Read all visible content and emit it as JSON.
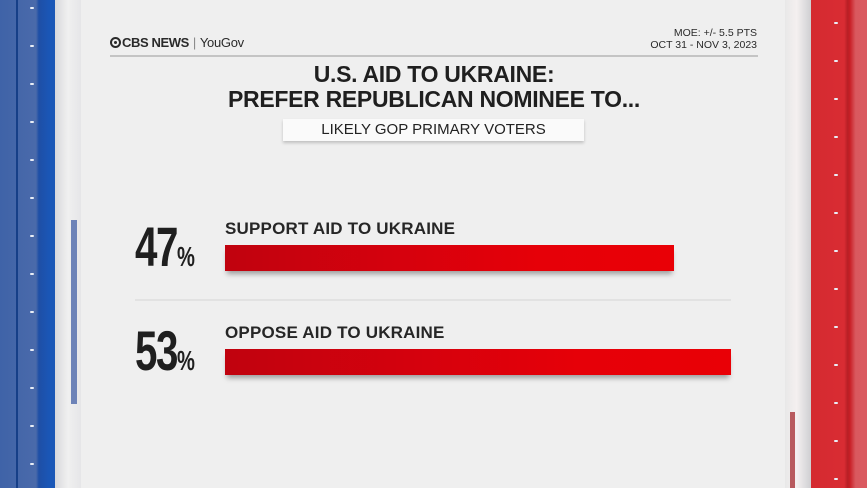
{
  "header": {
    "brand": {
      "cbs": "CBS NEWS",
      "separator": "|",
      "partner": "YouGov"
    },
    "moe": "MOE: +/- 5.5 PTS",
    "dates": "OCT 31 - NOV 3, 2023"
  },
  "title": {
    "line1": "U.S. AID TO UKRAINE:",
    "line2": "PREFER REPUBLICAN NOMINEE TO..."
  },
  "subtitle": "LIKELY GOP PRIMARY VOTERS",
  "rows": [
    {
      "value": "47",
      "sign": "%",
      "label": "SUPPORT AID TO UKRAINE"
    },
    {
      "value": "53",
      "sign": "%",
      "label": "OPPOSE AID TO UKRAINE"
    }
  ],
  "colors": {
    "bar": "#e60008",
    "left_rail": "#1a57b8",
    "right_rail": "#d92c33",
    "background": "#efefef"
  },
  "chart_data": {
    "type": "bar",
    "orientation": "horizontal",
    "title": "U.S. AID TO UKRAINE: PREFER REPUBLICAN NOMINEE TO...",
    "subtitle": "LIKELY GOP PRIMARY VOTERS",
    "categories": [
      "SUPPORT AID TO UKRAINE",
      "OPPOSE AID TO UKRAINE"
    ],
    "values": [
      47,
      53
    ],
    "unit": "%",
    "annotations": [
      "MOE: +/- 5.5 PTS",
      "OCT 31 - NOV 3, 2023"
    ],
    "source": "CBS NEWS | YouGov",
    "grid": false,
    "legend": "none"
  }
}
